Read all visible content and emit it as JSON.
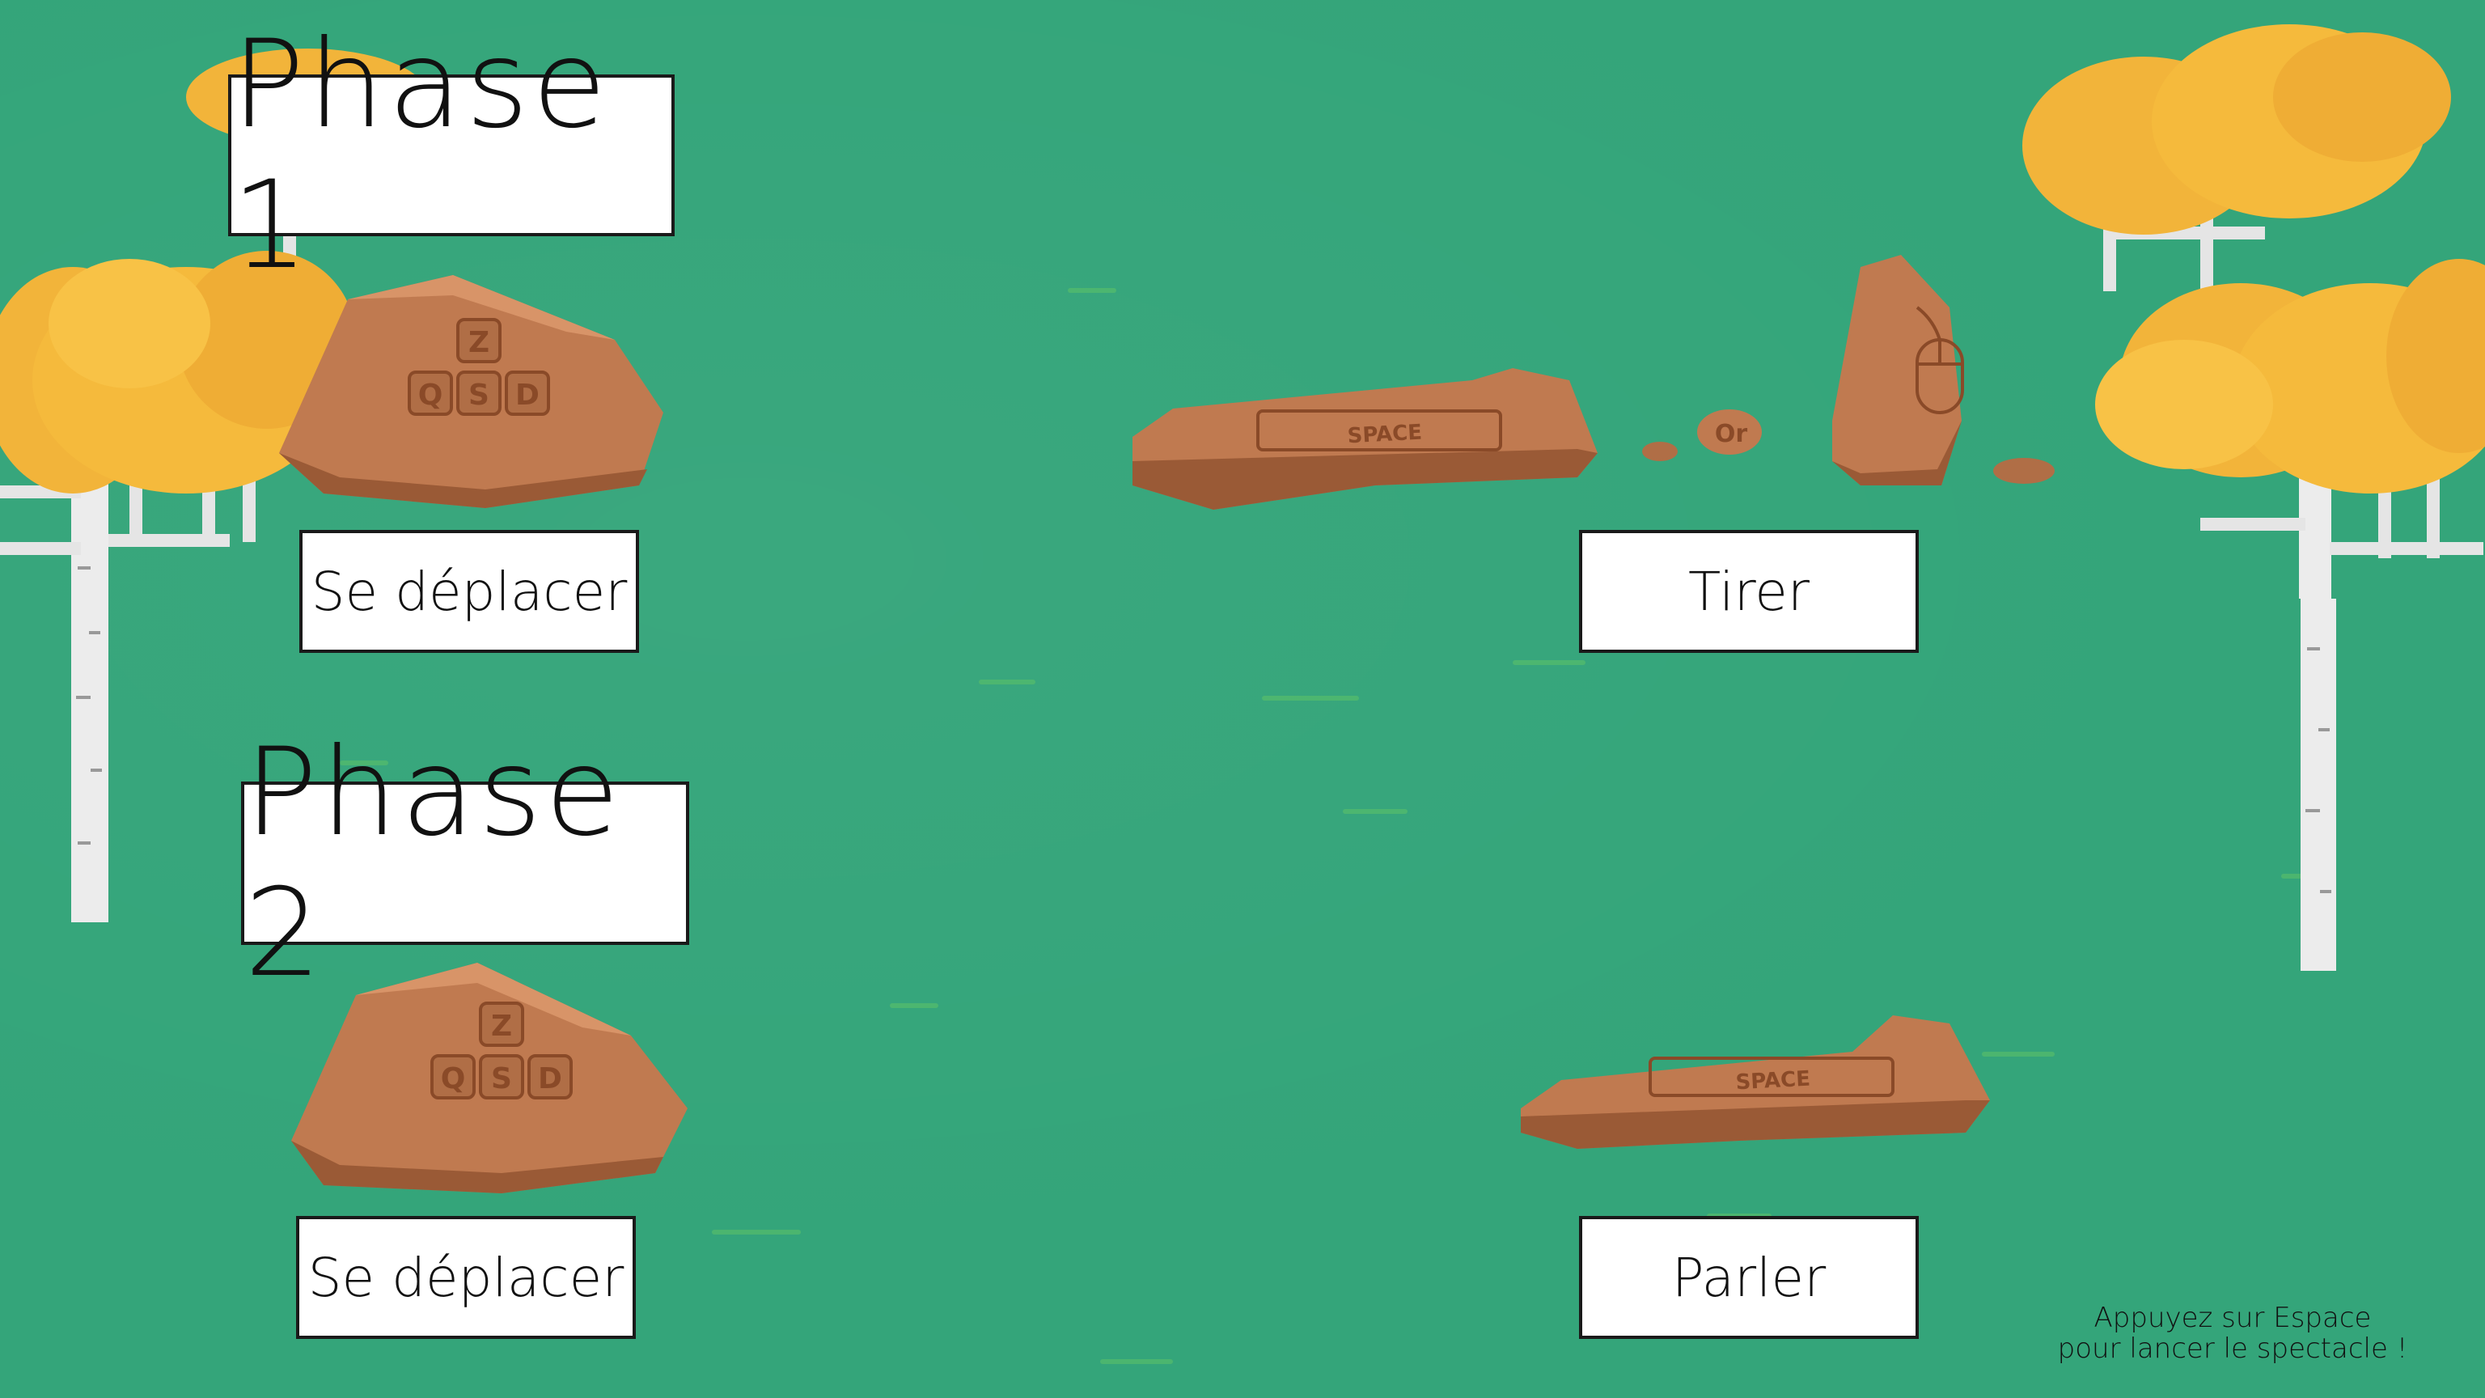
{
  "phase1": {
    "title": "Phase 1",
    "move_label": "Se déplacer",
    "shoot_label": "Tirer",
    "keys": [
      "Z",
      "Q",
      "S",
      "D"
    ],
    "space_key": "SPACE",
    "or_text": "Or"
  },
  "phase2": {
    "title": "Phase 2",
    "move_label": "Se déplacer",
    "talk_label": "Parler",
    "keys": [
      "Z",
      "Q",
      "S",
      "D"
    ],
    "space_key": "SPACE"
  },
  "hint": {
    "line1": "Appuyez sur Espace",
    "line2": "pour lancer le spectacle !"
  },
  "colors": {
    "grass": "#34a57a",
    "rock": "#c07a50",
    "rock_dark": "#9a5a36",
    "foliage": "#f2b43a",
    "trunk": "#e8e8e8"
  }
}
